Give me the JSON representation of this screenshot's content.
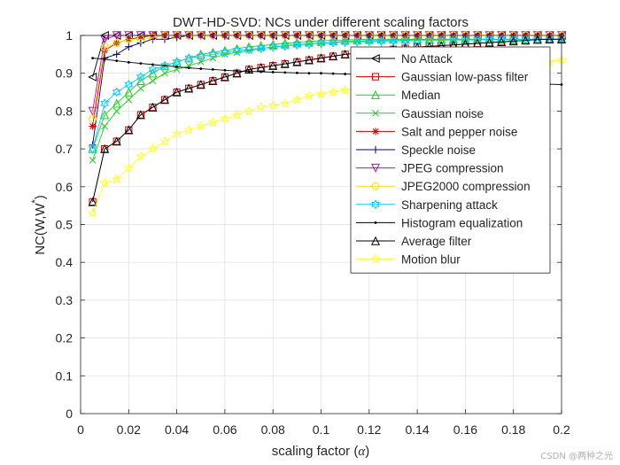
{
  "chart_data": {
    "type": "line",
    "title": "DWT-HD-SVD: NCs under different scaling factors",
    "xlabel": "scaling factor (",
    "xlabel_symbol": "α",
    "xlabel_suffix": ")",
    "ylabel_main": "NC(W,W",
    "ylabel_sup": "*",
    "ylabel_end": ")",
    "xlim": [
      0,
      0.2
    ],
    "ylim": [
      0,
      1
    ],
    "grid": true,
    "legend_position": "top-right",
    "x": [
      0.005,
      0.01,
      0.015,
      0.02,
      0.025,
      0.03,
      0.035,
      0.04,
      0.045,
      0.05,
      0.055,
      0.06,
      0.065,
      0.07,
      0.075,
      0.08,
      0.085,
      0.09,
      0.095,
      0.1,
      0.105,
      0.11,
      0.115,
      0.12,
      0.125,
      0.13,
      0.135,
      0.14,
      0.145,
      0.15,
      0.155,
      0.16,
      0.165,
      0.17,
      0.175,
      0.18,
      0.185,
      0.19,
      0.195,
      0.2
    ],
    "xticks": [
      "0",
      "0.02",
      "0.04",
      "0.06",
      "0.08",
      "0.1",
      "0.12",
      "0.14",
      "0.16",
      "0.18",
      "0.2"
    ],
    "yticks": [
      "0",
      "0.1",
      "0.2",
      "0.3",
      "0.4",
      "0.5",
      "0.6",
      "0.7",
      "0.8",
      "0.9",
      "1"
    ],
    "series": [
      {
        "name": "No Attack",
        "color": "#000000",
        "marker": "triangle-left",
        "values": [
          0.89,
          1.0,
          1.0,
          1.0,
          1.0,
          1.0,
          1.0,
          1.0,
          1.0,
          1.0,
          1.0,
          1.0,
          1.0,
          1.0,
          1.0,
          1.0,
          1.0,
          1.0,
          1.0,
          1.0,
          1.0,
          1.0,
          1.0,
          1.0,
          1.0,
          1.0,
          1.0,
          1.0,
          1.0,
          1.0,
          1.0,
          1.0,
          1.0,
          1.0,
          1.0,
          1.0,
          1.0,
          1.0,
          1.0,
          1.0
        ]
      },
      {
        "name": "Gaussian low-pass filter",
        "color": "#cc0000",
        "marker": "square",
        "values": [
          0.56,
          0.7,
          0.72,
          0.75,
          0.79,
          0.81,
          0.83,
          0.85,
          0.86,
          0.87,
          0.88,
          0.89,
          0.9,
          0.91,
          0.915,
          0.92,
          0.925,
          0.93,
          0.935,
          0.94,
          0.945,
          0.95,
          0.953,
          0.956,
          0.96,
          0.963,
          0.966,
          0.969,
          0.971,
          0.973,
          0.975,
          0.977,
          0.979,
          0.981,
          0.983,
          0.985,
          0.987,
          0.989,
          0.99,
          0.99
        ]
      },
      {
        "name": "Median",
        "color": "#22cc22",
        "marker": "triangle-up",
        "values": [
          0.7,
          0.79,
          0.82,
          0.85,
          0.88,
          0.9,
          0.92,
          0.93,
          0.94,
          0.95,
          0.955,
          0.96,
          0.965,
          0.97,
          0.973,
          0.976,
          0.979,
          0.982,
          0.984,
          0.986,
          0.987,
          0.988,
          0.989,
          0.99,
          0.99,
          0.99,
          0.99,
          0.99,
          0.99,
          0.99,
          0.99,
          0.99,
          0.99,
          0.99,
          0.99,
          0.99,
          0.99,
          0.99,
          0.99,
          0.99
        ]
      },
      {
        "name": "Gaussian noise",
        "color": "#22cc22",
        "marker": "x",
        "values": [
          0.67,
          0.76,
          0.8,
          0.83,
          0.86,
          0.88,
          0.9,
          0.91,
          0.92,
          0.93,
          0.94,
          0.95,
          0.955,
          0.96,
          0.965,
          0.97,
          0.973,
          0.976,
          0.978,
          0.98,
          0.982,
          0.984,
          0.985,
          0.986,
          0.987,
          0.988,
          0.988,
          0.989,
          0.989,
          0.99,
          0.99,
          0.99,
          0.99,
          0.99,
          0.99,
          0.99,
          0.99,
          0.99,
          0.99,
          0.99
        ]
      },
      {
        "name": "Salt and pepper noise",
        "color": "#cc0000",
        "marker": "asterisk",
        "values": [
          0.76,
          0.96,
          0.98,
          0.99,
          0.995,
          1.0,
          1.0,
          1.0,
          1.0,
          1.0,
          1.0,
          1.0,
          1.0,
          1.0,
          1.0,
          1.0,
          1.0,
          1.0,
          1.0,
          1.0,
          1.0,
          1.0,
          1.0,
          1.0,
          1.0,
          1.0,
          1.0,
          1.0,
          1.0,
          1.0,
          1.0,
          1.0,
          1.0,
          1.0,
          1.0,
          1.0,
          1.0,
          1.0,
          1.0,
          1.0
        ]
      },
      {
        "name": "Speckle noise",
        "color": "#000080",
        "marker": "plus",
        "values": [
          0.71,
          0.94,
          0.95,
          0.97,
          0.98,
          0.99,
          0.99,
          0.995,
          1.0,
          1.0,
          1.0,
          1.0,
          1.0,
          1.0,
          1.0,
          1.0,
          1.0,
          1.0,
          1.0,
          1.0,
          1.0,
          1.0,
          1.0,
          1.0,
          1.0,
          1.0,
          1.0,
          1.0,
          1.0,
          1.0,
          1.0,
          1.0,
          1.0,
          1.0,
          1.0,
          1.0,
          1.0,
          1.0,
          1.0,
          1.0
        ]
      },
      {
        "name": "JPEG compression",
        "color": "#cc00cc",
        "marker": "triangle-down",
        "values": [
          0.8,
          0.99,
          1.0,
          1.0,
          1.0,
          1.0,
          1.0,
          1.0,
          1.0,
          1.0,
          1.0,
          1.0,
          1.0,
          1.0,
          1.0,
          1.0,
          1.0,
          1.0,
          1.0,
          1.0,
          1.0,
          1.0,
          1.0,
          1.0,
          1.0,
          1.0,
          1.0,
          1.0,
          1.0,
          1.0,
          1.0,
          1.0,
          1.0,
          1.0,
          1.0,
          1.0,
          1.0,
          1.0,
          1.0,
          1.0
        ]
      },
      {
        "name": "JPEG2000 compression",
        "color": "#ffdd00",
        "marker": "circle",
        "values": [
          0.78,
          0.97,
          0.98,
          0.99,
          0.99,
          0.995,
          1.0,
          1.0,
          1.0,
          1.0,
          1.0,
          1.0,
          1.0,
          1.0,
          1.0,
          1.0,
          1.0,
          1.0,
          1.0,
          1.0,
          1.0,
          1.0,
          1.0,
          1.0,
          1.0,
          1.0,
          1.0,
          1.0,
          1.0,
          1.0,
          1.0,
          1.0,
          1.0,
          1.0,
          1.0,
          1.0,
          1.0,
          1.0,
          1.0,
          1.0
        ]
      },
      {
        "name": "Sharpening attack",
        "color": "#00ccff",
        "marker": "hexagram",
        "values": [
          0.7,
          0.82,
          0.85,
          0.87,
          0.89,
          0.91,
          0.92,
          0.93,
          0.94,
          0.945,
          0.95,
          0.955,
          0.96,
          0.963,
          0.966,
          0.969,
          0.972,
          0.975,
          0.977,
          0.979,
          0.981,
          0.982,
          0.983,
          0.984,
          0.985,
          0.985,
          0.986,
          0.986,
          0.987,
          0.987,
          0.988,
          0.988,
          0.988,
          0.989,
          0.989,
          0.989,
          0.99,
          0.99,
          0.99,
          0.99
        ]
      },
      {
        "name": "Histogram equalization",
        "color": "#000000",
        "marker": "point",
        "values": [
          0.94,
          0.937,
          0.933,
          0.929,
          0.926,
          0.923,
          0.92,
          0.917,
          0.914,
          0.912,
          0.91,
          0.908,
          0.906,
          0.905,
          0.904,
          0.903,
          0.902,
          0.901,
          0.9,
          0.9,
          0.899,
          0.898,
          0.897,
          0.896,
          0.895,
          0.894,
          0.893,
          0.892,
          0.891,
          0.89,
          0.889,
          0.888,
          0.887,
          0.886,
          0.885,
          0.884,
          0.883,
          0.882,
          0.871,
          0.87
        ]
      },
      {
        "name": "Average filter",
        "color": "#000000",
        "marker": "triangle-up",
        "values": [
          0.56,
          0.7,
          0.72,
          0.75,
          0.79,
          0.81,
          0.83,
          0.85,
          0.86,
          0.87,
          0.88,
          0.89,
          0.9,
          0.91,
          0.915,
          0.92,
          0.925,
          0.93,
          0.935,
          0.94,
          0.945,
          0.95,
          0.953,
          0.956,
          0.96,
          0.963,
          0.966,
          0.969,
          0.971,
          0.973,
          0.975,
          0.977,
          0.979,
          0.981,
          0.983,
          0.985,
          0.987,
          0.989,
          0.99,
          0.99
        ]
      },
      {
        "name": "Motion blur",
        "color": "#ffff33",
        "marker": "pentagram",
        "values": [
          0.53,
          0.61,
          0.62,
          0.65,
          0.68,
          0.7,
          0.72,
          0.74,
          0.75,
          0.76,
          0.77,
          0.78,
          0.79,
          0.8,
          0.81,
          0.815,
          0.82,
          0.83,
          0.84,
          0.845,
          0.85,
          0.855,
          0.86,
          0.865,
          0.87,
          0.875,
          0.878,
          0.881,
          0.884,
          0.887,
          0.89,
          0.895,
          0.9,
          0.905,
          0.91,
          0.915,
          0.92,
          0.925,
          0.93,
          0.935
        ]
      }
    ]
  },
  "watermark": "CSDN @两种之光"
}
